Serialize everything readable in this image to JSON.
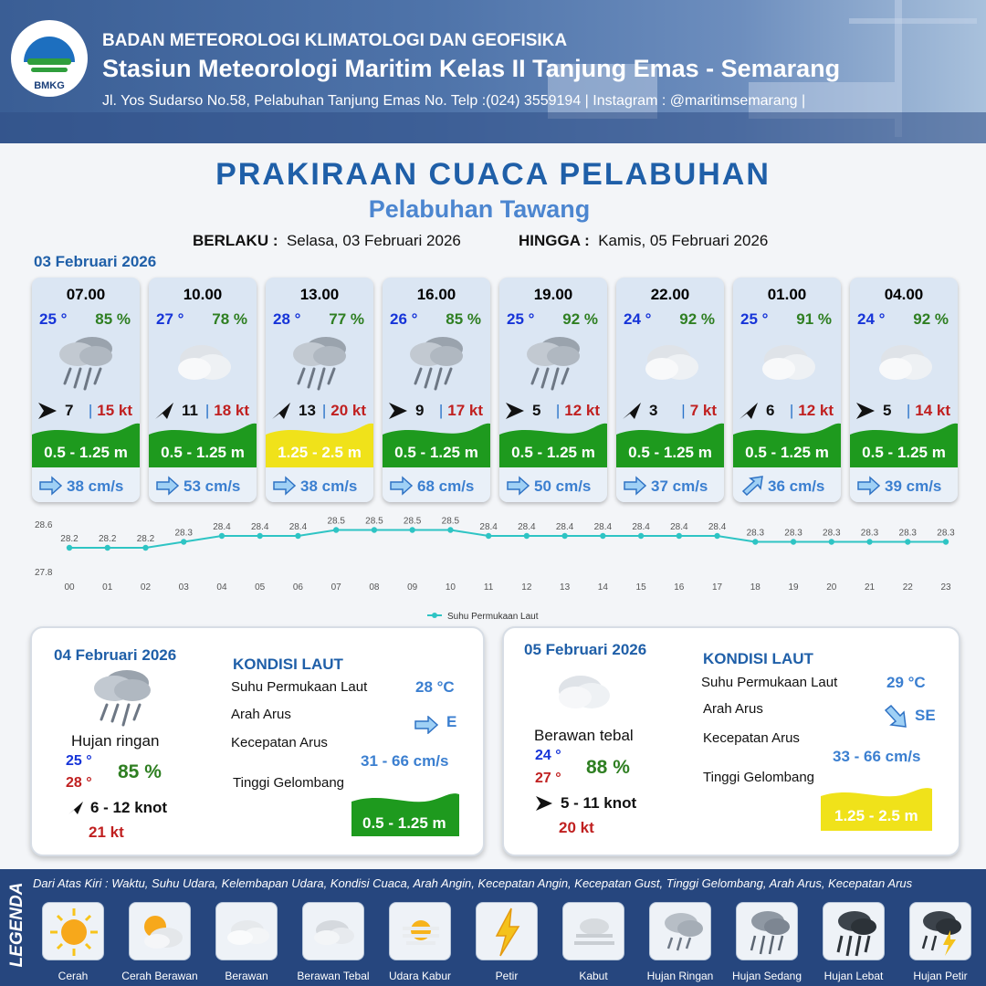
{
  "header": {
    "agency": "BADAN METEOROLOGI KLIMATOLOGI DAN GEOFISIKA",
    "station": "Stasiun Meteorologi Maritim Kelas II Tanjung Emas - Semarang",
    "address": "Jl. Yos Sudarso No.58, Pelabuhan Tanjung Emas No. Telp :(024) 3559194 | Instagram : @maritimsemarang |",
    "logo_text": "BMKG"
  },
  "title": "PRAKIRAAN CUACA PELABUHAN",
  "subtitle": "Pelabuhan Tawang",
  "validity": {
    "from_label": "BERLAKU :",
    "from_value": "Selasa, 03 Februari 2026",
    "to_label": "HINGGA :",
    "to_value": "Kamis, 05 Februari 2026"
  },
  "day1_date": "03 Februari 2026",
  "forecasts": [
    {
      "time": "07.00",
      "temp": "25 °",
      "hum": "85 %",
      "wind": "7",
      "gust": "15 kt",
      "wave": "0.5 - 1.25 m",
      "current": "38 cm/s",
      "icon": "light-rain-icon",
      "wind_dir": "east",
      "current_dir": "east",
      "wave_class": "green"
    },
    {
      "time": "10.00",
      "temp": "27 °",
      "hum": "78 %",
      "wind": "11",
      "gust": "18 kt",
      "wave": "0.5 - 1.25 m",
      "current": "53 cm/s",
      "icon": "thick-cloud-icon",
      "wind_dir": "northeast",
      "current_dir": "east",
      "wave_class": "green"
    },
    {
      "time": "13.00",
      "temp": "28 °",
      "hum": "77 %",
      "wind": "13",
      "gust": "20 kt",
      "wave": "1.25 - 2.5 m",
      "current": "38 cm/s",
      "icon": "light-rain-icon",
      "wind_dir": "northeast",
      "current_dir": "east",
      "wave_class": "yellow"
    },
    {
      "time": "16.00",
      "temp": "26 °",
      "hum": "85 %",
      "wind": "9",
      "gust": "17 kt",
      "wave": "0.5 - 1.25 m",
      "current": "68 cm/s",
      "icon": "light-rain-icon",
      "wind_dir": "east",
      "current_dir": "east",
      "wave_class": "green"
    },
    {
      "time": "19.00",
      "temp": "25 °",
      "hum": "92 %",
      "wind": "5",
      "gust": "12 kt",
      "wave": "0.5 - 1.25 m",
      "current": "50 cm/s",
      "icon": "light-rain-icon",
      "wind_dir": "east",
      "current_dir": "east",
      "wave_class": "green"
    },
    {
      "time": "22.00",
      "temp": "24 °",
      "hum": "92 %",
      "wind": "3",
      "gust": "7 kt",
      "wave": "0.5 - 1.25 m",
      "current": "37 cm/s",
      "icon": "thick-cloud-icon",
      "wind_dir": "northeast",
      "current_dir": "east",
      "wave_class": "green"
    },
    {
      "time": "01.00",
      "temp": "25 °",
      "hum": "91 %",
      "wind": "6",
      "gust": "12 kt",
      "wave": "0.5 - 1.25 m",
      "current": "36 cm/s",
      "icon": "thick-cloud-icon",
      "wind_dir": "northeast",
      "current_dir": "northeast",
      "wave_class": "green"
    },
    {
      "time": "04.00",
      "temp": "24 °",
      "hum": "92 %",
      "wind": "5",
      "gust": "14 kt",
      "wave": "0.5 - 1.25 m",
      "current": "39 cm/s",
      "icon": "thick-cloud-icon",
      "wind_dir": "east",
      "current_dir": "east",
      "wave_class": "green"
    }
  ],
  "chart_data": {
    "type": "line",
    "x": [
      "00",
      "01",
      "02",
      "03",
      "04",
      "05",
      "06",
      "07",
      "08",
      "09",
      "10",
      "11",
      "12",
      "13",
      "14",
      "15",
      "16",
      "17",
      "18",
      "19",
      "20",
      "21",
      "22",
      "23"
    ],
    "series": [
      {
        "name": "Suhu Permukaan Laut",
        "values": [
          28.2,
          28.2,
          28.2,
          28.3,
          28.4,
          28.4,
          28.4,
          28.5,
          28.5,
          28.5,
          28.5,
          28.4,
          28.4,
          28.4,
          28.4,
          28.4,
          28.4,
          28.4,
          28.3,
          28.3,
          28.3,
          28.3,
          28.3,
          28.3
        ],
        "color": "#2ec4c4"
      }
    ],
    "ylim": [
      27.8,
      28.6
    ],
    "yticks": [
      "28.6",
      "27.8"
    ],
    "title": "",
    "xlabel": "",
    "ylabel": "",
    "legend": "bottom-center"
  },
  "day2": {
    "date": "04 Februari 2026",
    "weather": "Hujan ringan",
    "icon": "light-rain-icon",
    "temp_min": "25 °",
    "temp_max": "28 °",
    "hum": "85 %",
    "wind": "6  - 12 knot",
    "gust": "21 kt",
    "sea": {
      "heading": "KONDISI LAUT",
      "sst_label": "Suhu Permukaan Laut",
      "sst": "28 °C",
      "dir_label": "Arah Arus",
      "dir": "E",
      "speed_label": "Kecepatan Arus",
      "speed": "31 - 66 cm/s",
      "wave_label": "Tinggi Gelombang",
      "wave": "0.5 - 1.25 m"
    }
  },
  "day3": {
    "date": "05 Februari 2026",
    "weather": "Berawan tebal",
    "icon": "thick-cloud-icon",
    "temp_min": "24 °",
    "temp_max": "27 °",
    "hum": "88 %",
    "wind": "5  - 11 knot",
    "gust": "20 kt",
    "sea": {
      "heading": "KONDISI LAUT",
      "sst_label": "Suhu Permukaan Laut",
      "sst": "29 °C",
      "dir_label": "Arah Arus",
      "dir": "SE",
      "speed_label": "Kecepatan Arus",
      "speed": "33 - 66 cm/s",
      "wave_label": "Tinggi Gelombang",
      "wave": "1.25 - 2.5 m"
    }
  },
  "legend": {
    "title": "LEGENDA",
    "description": "Dari Atas Kiri : Waktu, Suhu Udara, Kelembapan Udara, Kondisi Cuaca, Arah Angin, Kecepatan Angin, Kecepatan Gust, Tinggi Gelombang, Arah Arus, Kecepatan Arus",
    "items": [
      {
        "label": "Cerah",
        "icon": "sun-icon"
      },
      {
        "label": "Cerah Berawan",
        "icon": "sun-cloud-icon"
      },
      {
        "label": "Berawan",
        "icon": "cloud-icon"
      },
      {
        "label": "Berawan Tebal",
        "icon": "thick-cloud-icon"
      },
      {
        "label": "Udara Kabur",
        "icon": "haze-icon"
      },
      {
        "label": "Petir",
        "icon": "lightning-icon"
      },
      {
        "label": "Kabut",
        "icon": "fog-icon"
      },
      {
        "label": "Hujan Ringan",
        "icon": "light-rain-icon"
      },
      {
        "label": "Hujan Sedang",
        "icon": "moderate-rain-icon"
      },
      {
        "label": "Hujan Lebat",
        "icon": "heavy-rain-icon"
      },
      {
        "label": "Hujan Petir",
        "icon": "thunderstorm-icon"
      }
    ]
  },
  "colors": {
    "wave_green": "#1e9a1e",
    "wave_yellow": "#f0e21a",
    "temp_blue": "#1634d8",
    "hum_green": "#2f7f22",
    "gust_red": "#c02020",
    "title_blue": "#1f5fa8"
  }
}
